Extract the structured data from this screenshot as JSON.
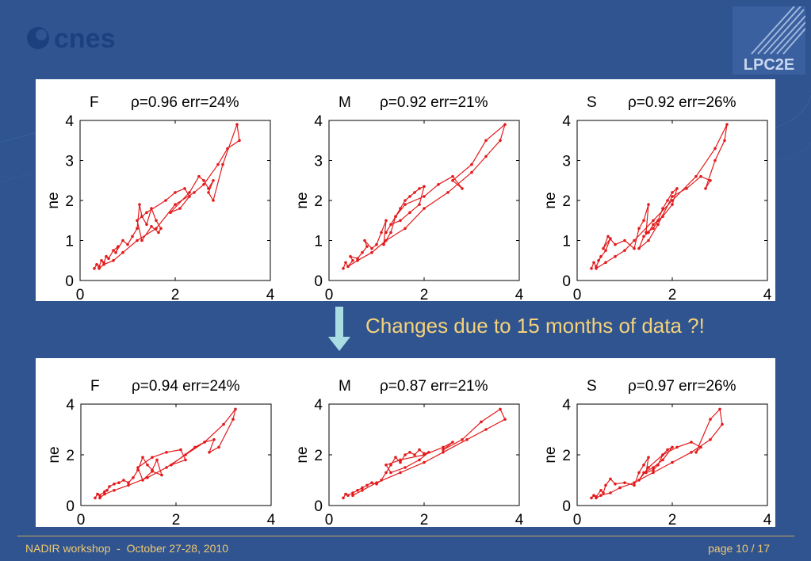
{
  "branding": {
    "left_logo_text": "cnes",
    "right_logo_text": "LPC2E"
  },
  "annotation": "Changes due to 15 months of data ?!",
  "footer": {
    "left": "NADIR workshop  -  October 27-28, 2010",
    "right": "page 10 / 17"
  },
  "colors": {
    "background": "#2f5490",
    "series": "#e31a1c",
    "annotation": "#f6d27a",
    "arrow": "#a9dde3"
  },
  "chart_data": [
    {
      "type": "line",
      "row": "top",
      "label": "F",
      "stats": "ρ=0.96 err=24%",
      "ylabel": "ne",
      "xlim": [
        0,
        4
      ],
      "ylim": [
        0,
        4
      ],
      "xticks": [
        "0",
        "2",
        "4"
      ],
      "yticks": [
        "0",
        "1",
        "2",
        "3",
        "4"
      ],
      "series": [
        {
          "x": [
            0.3,
            0.35,
            0.4,
            0.45,
            0.5,
            0.55,
            0.6,
            0.7,
            0.8,
            0.75,
            0.9,
            1.0,
            1.1,
            1.2,
            1.25,
            1.3,
            1.4,
            1.5,
            1.6,
            1.7,
            1.65,
            1.5,
            1.3,
            1.2,
            1.4,
            1.8,
            2.0,
            2.2,
            2.3,
            2.1,
            1.9,
            2.3,
            2.5,
            2.6,
            2.7,
            2.8,
            2.7,
            2.8,
            3.0,
            3.3,
            3.35,
            3.1,
            2.9,
            2.6,
            2.4,
            2.0,
            1.6,
            1.2,
            0.9,
            0.7,
            0.5,
            0.4
          ],
          "y": [
            0.3,
            0.4,
            0.35,
            0.5,
            0.45,
            0.6,
            0.55,
            0.75,
            0.85,
            0.7,
            1.0,
            0.9,
            1.1,
            1.3,
            1.9,
            1.6,
            1.4,
            1.8,
            1.5,
            1.3,
            1.2,
            1.35,
            1.0,
            1.5,
            1.7,
            2.0,
            2.2,
            2.3,
            2.1,
            1.8,
            1.7,
            2.2,
            2.6,
            2.5,
            2.3,
            2.5,
            2.2,
            2.0,
            2.9,
            3.9,
            3.5,
            3.3,
            2.9,
            2.4,
            2.2,
            1.9,
            1.3,
            1.0,
            0.7,
            0.5,
            0.4,
            0.3
          ]
        }
      ]
    },
    {
      "type": "line",
      "row": "top",
      "label": "M",
      "stats": "ρ=0.92 err=21%",
      "ylabel": "ne",
      "xlim": [
        0,
        4
      ],
      "ylim": [
        0,
        4
      ],
      "xticks": [
        "0",
        "2",
        "4"
      ],
      "yticks": [
        "0",
        "1",
        "2",
        "3",
        "4"
      ],
      "series": [
        {
          "x": [
            0.3,
            0.35,
            0.4,
            0.5,
            0.45,
            0.6,
            0.7,
            0.8,
            0.75,
            0.9,
            1.0,
            1.1,
            1.2,
            1.15,
            1.3,
            1.4,
            1.5,
            1.6,
            1.7,
            1.8,
            1.9,
            2.0,
            1.9,
            1.7,
            1.5,
            1.3,
            1.2,
            1.4,
            1.6,
            2.0,
            2.3,
            2.6,
            2.8,
            2.6,
            3.0,
            3.3,
            3.7,
            3.6,
            3.3,
            3.0,
            2.5,
            2.0,
            1.6,
            1.2,
            0.9,
            0.6,
            0.4
          ],
          "y": [
            0.3,
            0.45,
            0.35,
            0.5,
            0.6,
            0.55,
            0.7,
            0.85,
            1.0,
            0.8,
            0.9,
            1.2,
            1.5,
            0.9,
            1.2,
            1.6,
            1.8,
            2.0,
            2.1,
            2.2,
            2.3,
            2.35,
            1.9,
            1.7,
            1.5,
            1.4,
            1.2,
            1.6,
            1.9,
            2.1,
            2.4,
            2.6,
            2.3,
            2.5,
            2.9,
            3.5,
            3.9,
            3.5,
            3.1,
            2.7,
            2.2,
            1.8,
            1.3,
            1.0,
            0.7,
            0.5,
            0.35
          ]
        }
      ]
    },
    {
      "type": "line",
      "row": "top",
      "label": "S",
      "stats": "ρ=0.92 err=26%",
      "ylabel": "ne",
      "xlim": [
        0,
        4
      ],
      "ylim": [
        0,
        4
      ],
      "xticks": [
        "0",
        "2",
        "4"
      ],
      "yticks": [
        "0",
        "1",
        "2",
        "3",
        "4"
      ],
      "series": [
        {
          "x": [
            0.3,
            0.35,
            0.4,
            0.5,
            0.45,
            0.6,
            0.7,
            0.55,
            0.65,
            0.8,
            1.0,
            1.2,
            1.3,
            1.4,
            1.5,
            1.45,
            1.6,
            1.7,
            1.8,
            1.9,
            2.0,
            2.1,
            2.0,
            1.8,
            1.6,
            1.5,
            1.4,
            1.3,
            1.5,
            1.7,
            2.0,
            2.3,
            2.6,
            2.8,
            2.7,
            2.9,
            3.1,
            3.15,
            2.9,
            2.5,
            2.0,
            1.6,
            1.2,
            1.0,
            0.8,
            0.6,
            0.4
          ],
          "y": [
            0.3,
            0.45,
            0.35,
            0.6,
            0.5,
            0.75,
            1.05,
            0.8,
            1.1,
            0.9,
            1.0,
            0.8,
            1.3,
            1.5,
            1.9,
            1.2,
            1.3,
            1.5,
            1.8,
            2.0,
            2.2,
            2.3,
            1.9,
            1.6,
            1.4,
            1.2,
            1.1,
            0.8,
            1.0,
            1.4,
            2.1,
            2.3,
            2.6,
            2.5,
            2.3,
            3.0,
            3.5,
            3.9,
            3.3,
            2.6,
            2.0,
            1.5,
            1.0,
            0.75,
            0.6,
            0.45,
            0.3
          ]
        }
      ]
    },
    {
      "type": "line",
      "row": "bottom",
      "label": "F",
      "stats": "ρ=0.94 err=24%",
      "ylabel": "ne",
      "xlim": [
        0,
        4
      ],
      "ylim": [
        0,
        4
      ],
      "xticks": [
        "0",
        "2",
        "4"
      ],
      "yticks": [
        "0",
        "2",
        "4"
      ],
      "series": [
        {
          "x": [
            0.3,
            0.35,
            0.4,
            0.5,
            0.55,
            0.6,
            0.7,
            0.8,
            0.9,
            1.0,
            1.1,
            1.2,
            1.3,
            1.4,
            1.5,
            1.6,
            1.7,
            1.5,
            1.3,
            1.2,
            1.5,
            1.8,
            2.1,
            2.2,
            1.9,
            2.4,
            2.6,
            2.8,
            2.7,
            2.9,
            3.2,
            3.25,
            3.0,
            2.6,
            2.2,
            1.8,
            1.4,
            1.0,
            0.7,
            0.5,
            0.4
          ],
          "y": [
            0.3,
            0.45,
            0.4,
            0.55,
            0.6,
            0.75,
            0.85,
            0.9,
            1.0,
            0.9,
            1.1,
            1.4,
            1.9,
            1.6,
            1.4,
            1.8,
            1.2,
            1.35,
            1.0,
            1.5,
            1.9,
            2.1,
            2.2,
            1.8,
            1.6,
            2.3,
            2.5,
            2.6,
            2.1,
            2.3,
            3.4,
            3.8,
            3.2,
            2.5,
            2.0,
            1.5,
            1.1,
            0.8,
            0.6,
            0.45,
            0.3
          ]
        }
      ]
    },
    {
      "type": "line",
      "row": "bottom",
      "label": "M",
      "stats": "ρ=0.87 err=21%",
      "ylabel": "ne",
      "xlim": [
        0,
        4
      ],
      "ylim": [
        0,
        4
      ],
      "xticks": [
        "0",
        "2",
        "4"
      ],
      "yticks": [
        "0",
        "2",
        "4"
      ],
      "series": [
        {
          "x": [
            0.3,
            0.35,
            0.4,
            0.5,
            0.6,
            0.7,
            0.8,
            0.9,
            1.0,
            1.1,
            1.2,
            1.3,
            1.4,
            1.5,
            1.6,
            1.7,
            1.8,
            1.9,
            2.0,
            2.1,
            1.9,
            1.6,
            1.3,
            1.2,
            1.5,
            2.0,
            2.4,
            2.6,
            2.4,
            2.8,
            3.2,
            3.6,
            3.7,
            3.3,
            2.9,
            2.4,
            2.0,
            1.5,
            1.0,
            0.7,
            0.5
          ],
          "y": [
            0.3,
            0.45,
            0.4,
            0.5,
            0.6,
            0.7,
            0.8,
            0.9,
            0.85,
            1.0,
            1.3,
            1.6,
            1.9,
            1.7,
            2.0,
            2.1,
            2.0,
            2.2,
            2.05,
            2.1,
            1.8,
            1.5,
            1.3,
            1.6,
            1.8,
            2.0,
            2.3,
            2.5,
            2.2,
            2.6,
            3.3,
            3.8,
            3.4,
            3.0,
            2.6,
            2.1,
            1.7,
            1.3,
            0.9,
            0.6,
            0.4
          ]
        }
      ]
    },
    {
      "type": "line",
      "row": "bottom",
      "label": "S",
      "stats": "ρ=0.97 err=26%",
      "ylabel": "ne",
      "xlim": [
        0,
        4
      ],
      "ylim": [
        0,
        4
      ],
      "xticks": [
        "0",
        "2",
        "4"
      ],
      "yticks": [
        "0",
        "2",
        "4"
      ],
      "series": [
        {
          "x": [
            0.3,
            0.35,
            0.4,
            0.5,
            0.55,
            0.6,
            0.7,
            0.8,
            1.0,
            1.2,
            1.3,
            1.4,
            1.5,
            1.45,
            1.6,
            1.7,
            1.8,
            1.9,
            2.0,
            1.8,
            1.6,
            1.4,
            1.3,
            1.5,
            1.8,
            2.1,
            2.4,
            2.6,
            2.5,
            2.8,
            3.0,
            3.05,
            2.8,
            2.4,
            2.0,
            1.6,
            1.2,
            0.9,
            0.7,
            0.5,
            0.4
          ],
          "y": [
            0.3,
            0.4,
            0.35,
            0.6,
            0.5,
            0.8,
            1.05,
            0.85,
            0.9,
            0.8,
            1.3,
            1.6,
            1.9,
            1.3,
            1.4,
            1.6,
            2.0,
            2.2,
            2.3,
            1.8,
            1.5,
            1.3,
            1.0,
            1.5,
            2.0,
            2.3,
            2.5,
            2.3,
            2.1,
            3.4,
            3.8,
            3.2,
            2.6,
            2.1,
            1.7,
            1.3,
            0.9,
            0.7,
            0.5,
            0.4,
            0.3
          ]
        }
      ]
    }
  ]
}
